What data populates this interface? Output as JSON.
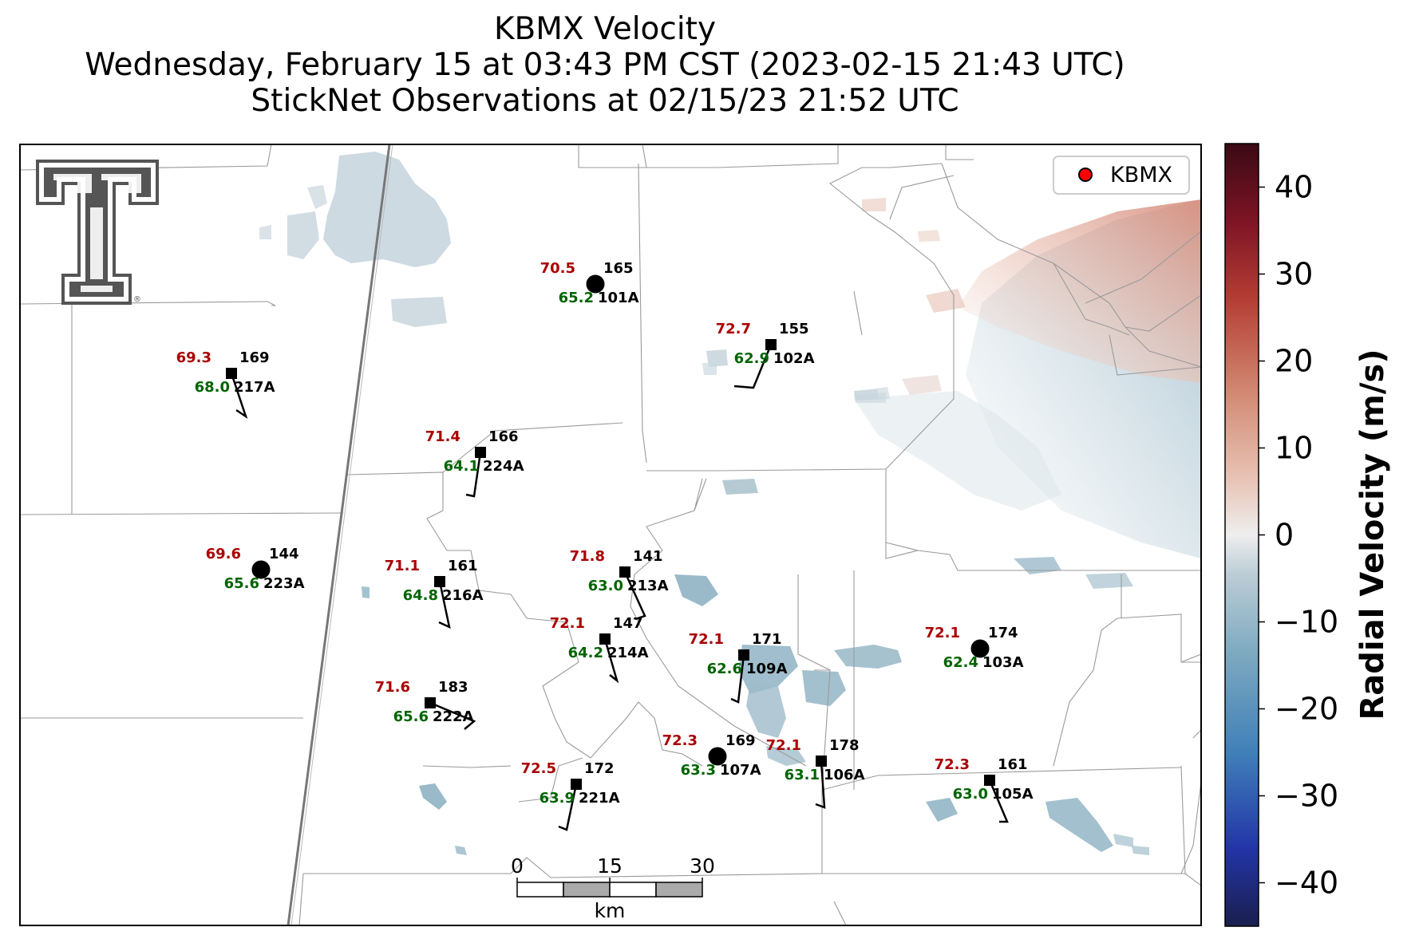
{
  "title": {
    "line1": "KBMX Velocity",
    "line2": "Wednesday, February 15 at 03:43 PM CST (2023-02-15 21:43 UTC)",
    "line3": "StickNet Observations at 02/15/23 21:52 UTC"
  },
  "legend": {
    "label": "KBMX",
    "marker_color": "#ff0000"
  },
  "colorbar": {
    "label": "Radial Velocity (m/s)",
    "range": [
      -45,
      45
    ],
    "ticks": [
      "40",
      "30",
      "20",
      "10",
      "0",
      "−10",
      "−20",
      "−30",
      "−40"
    ],
    "tick_values": [
      40,
      30,
      20,
      10,
      0,
      -10,
      -20,
      -30,
      -40
    ],
    "colors": [
      "#f2d6cc",
      "#d99484",
      "#b5473a",
      "#7a1420",
      "#3b0b16"
    ]
  },
  "scalebar": {
    "labels": [
      "0",
      "15",
      "30"
    ],
    "unit": "km"
  },
  "logo": {
    "name": "texas-tech-double-t-logo",
    "text": "TT"
  },
  "stations": [
    {
      "id": "165",
      "name": "101A",
      "temp": "70.5",
      "dew": "65.2",
      "marker": "circle"
    },
    {
      "id": "155",
      "name": "102A",
      "temp": "72.7",
      "dew": "62.9",
      "marker": "square"
    },
    {
      "id": "169",
      "name": "217A",
      "temp": "69.3",
      "dew": "68.0",
      "marker": "square"
    },
    {
      "id": "166",
      "name": "224A",
      "temp": "71.4",
      "dew": "64.1",
      "marker": "square"
    },
    {
      "id": "144",
      "name": "223A",
      "temp": "69.6",
      "dew": "65.6",
      "marker": "circle"
    },
    {
      "id": "161",
      "name": "216A",
      "temp": "71.1",
      "dew": "64.8",
      "marker": "square"
    },
    {
      "id": "141",
      "name": "213A",
      "temp": "71.8",
      "dew": "63.0",
      "marker": "square"
    },
    {
      "id": "147",
      "name": "214A",
      "temp": "72.1",
      "dew": "64.2",
      "marker": "square"
    },
    {
      "id": "171",
      "name": "109A",
      "temp": "72.1",
      "dew": "62.6",
      "marker": "square"
    },
    {
      "id": "174",
      "name": "103A",
      "temp": "72.1",
      "dew": "62.4",
      "marker": "circle"
    },
    {
      "id": "183",
      "name": "222A",
      "temp": "71.6",
      "dew": "65.6",
      "marker": "square"
    },
    {
      "id": "169",
      "name": "107A",
      "temp": "72.3",
      "dew": "63.3",
      "marker": "circle"
    },
    {
      "id": "178",
      "name": "106A",
      "temp": "72.1",
      "dew": "63.1",
      "marker": "square"
    },
    {
      "id": "172",
      "name": "221A",
      "temp": "72.5",
      "dew": "63.9",
      "marker": "square"
    },
    {
      "id": "161",
      "name": "105A",
      "temp": "72.3",
      "dew": "63.0",
      "marker": "square"
    }
  ],
  "colors": {
    "temp": "#aa0000",
    "dew": "#006400",
    "id": "#000000",
    "county_lines": "#999999",
    "neg_velocity": "#8fb3c4",
    "pos_velocity": "#e6b0a0"
  }
}
